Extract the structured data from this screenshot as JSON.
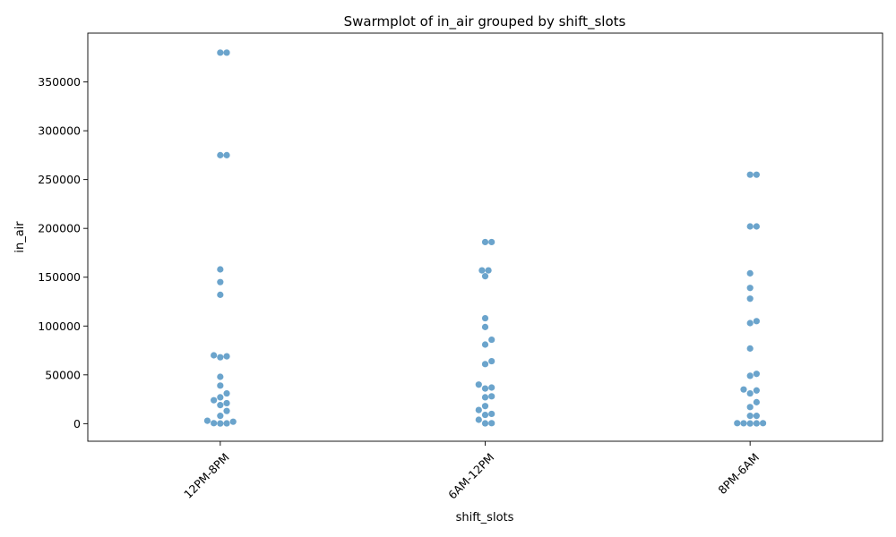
{
  "chart_data": {
    "type": "scatter",
    "title": "Swarmplot of in_air grouped by shift_slots",
    "xlabel": "shift_slots",
    "ylabel": "in_air",
    "categories": [
      "12PM-8PM",
      "6AM-12PM",
      "8PM-6AM"
    ],
    "y_ticks": [
      0,
      50000,
      100000,
      150000,
      200000,
      250000,
      300000,
      350000
    ],
    "ylim": [
      -18000,
      400000
    ],
    "grid": false,
    "legend": "none",
    "color": "#5b9ac6",
    "x_tick_rotation_deg": 45,
    "series": [
      {
        "category": "12PM-8PM",
        "values": [
          380000,
          380000,
          275000,
          275000,
          158000,
          145000,
          132000,
          69000,
          68000,
          70000,
          48000,
          39000,
          31000,
          27000,
          24000,
          21000,
          19000,
          13000,
          8000,
          3000,
          2000,
          500,
          300,
          200
        ]
      },
      {
        "category": "6AM-12PM",
        "values": [
          186000,
          186000,
          157000,
          157000,
          151000,
          108000,
          99000,
          86000,
          81000,
          64000,
          61000,
          40000,
          37000,
          36000,
          28000,
          27000,
          18000,
          14000,
          10000,
          9000,
          4000,
          500,
          300
        ]
      },
      {
        "category": "8PM-6AM",
        "values": [
          255000,
          255000,
          202000,
          202000,
          154000,
          139000,
          128000,
          105000,
          103000,
          77000,
          51000,
          49000,
          35000,
          34000,
          31000,
          22000,
          17000,
          8000,
          8000,
          500,
          500,
          400,
          300,
          200
        ]
      }
    ]
  }
}
